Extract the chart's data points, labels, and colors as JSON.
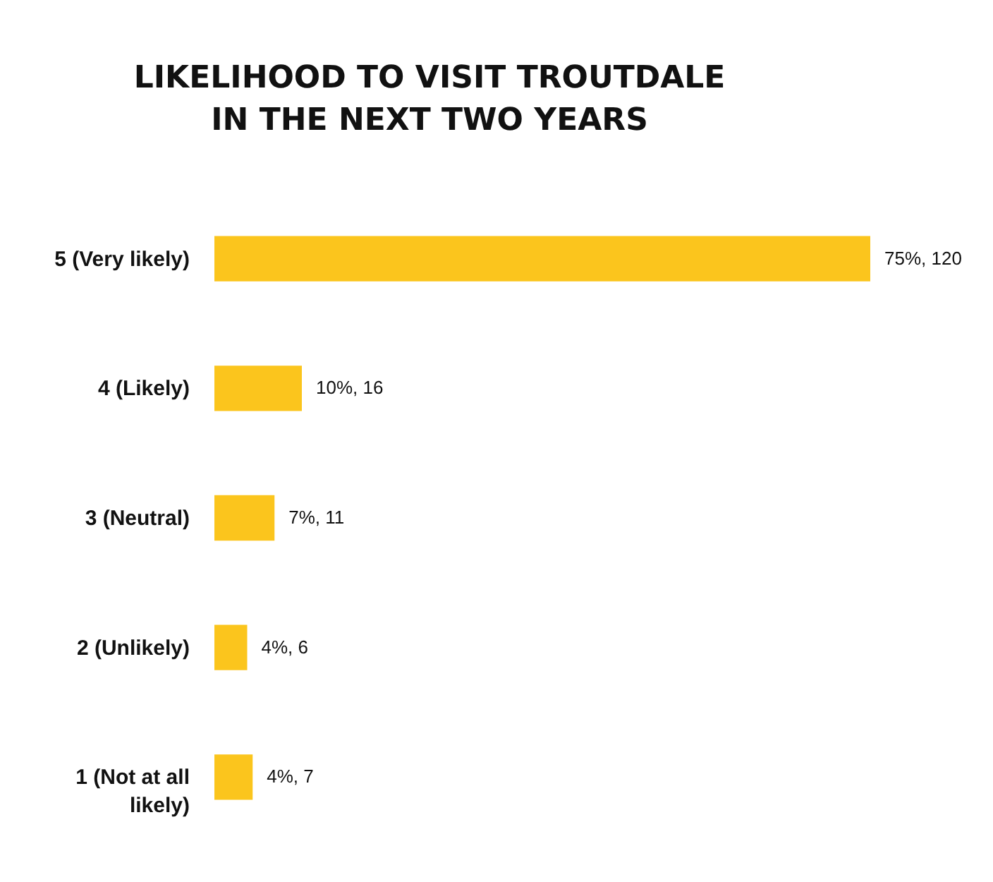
{
  "chart_data": {
    "type": "bar",
    "orientation": "horizontal",
    "title": "LIKELIHOOD TO VISIT TROUTDALE\nIN THE NEXT TWO YEARS",
    "categories": [
      "5 (Very likely)",
      "4 (Likely)",
      "3 (Neutral)",
      "2 (Unlikely)",
      "1 (Not at all likely)"
    ],
    "values": [
      120,
      16,
      11,
      6,
      7
    ],
    "value_labels": [
      "75%, 120",
      "10%, 16",
      "7%, 11",
      "4%, 6",
      "4%, 7"
    ],
    "color": "#fbc51d"
  }
}
